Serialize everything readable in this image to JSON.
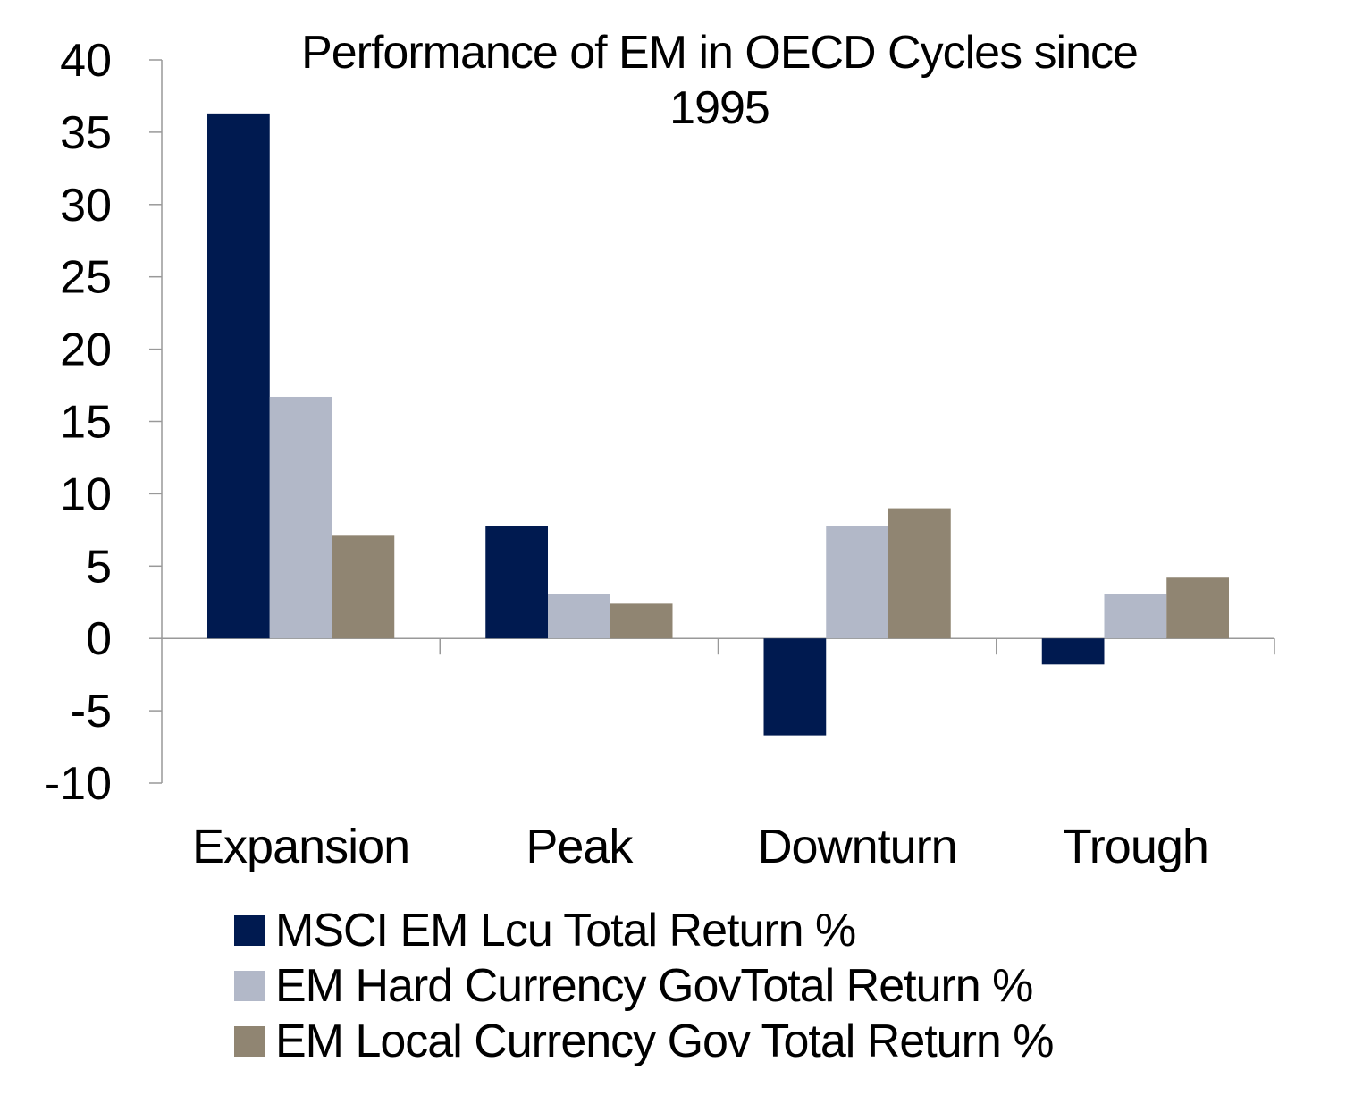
{
  "chart_data": {
    "type": "bar",
    "title": "Performance of EM in OECD Cycles since 1995",
    "title_lines": [
      "Performance of EM in OECD Cycles since",
      "1995"
    ],
    "categories": [
      "Expansion",
      "Peak",
      "Downturn",
      "Trough"
    ],
    "series": [
      {
        "name": "MSCI EM Lcu Total Return %",
        "color": "#001A50",
        "values": [
          36.3,
          7.8,
          -6.7,
          -1.8
        ]
      },
      {
        "name": "EM Hard Currency GovTotal Return %",
        "color": "#B2B8C8",
        "values": [
          16.7,
          3.1,
          7.8,
          3.1
        ]
      },
      {
        "name": "EM Local Currency Gov Total Return %",
        "color": "#908572",
        "values": [
          7.1,
          2.4,
          9.0,
          4.2
        ]
      }
    ],
    "ylim": [
      -10,
      40
    ],
    "yticks": [
      "-10",
      "-5",
      "0",
      "5",
      "10",
      "15",
      "20",
      "25",
      "30",
      "35",
      "40"
    ],
    "xlabel": "",
    "ylabel": "",
    "grid": false,
    "legend_position": "bottom"
  }
}
